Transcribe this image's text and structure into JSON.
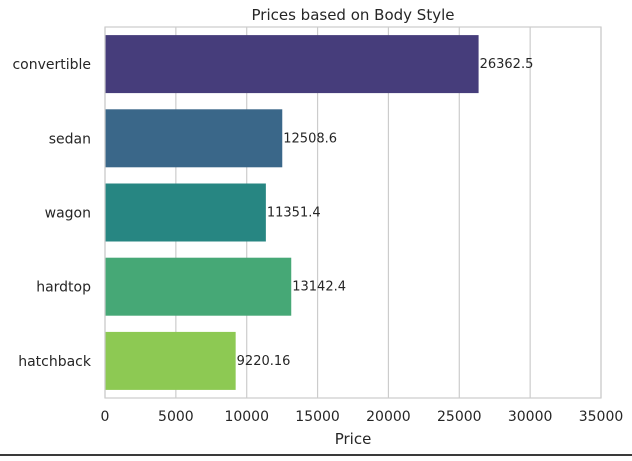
{
  "chart_data": {
    "type": "bar",
    "orientation": "horizontal",
    "title": "Prices based on Body Style",
    "xlabel": "Price",
    "ylabel": "",
    "categories": [
      "convertible",
      "sedan",
      "wagon",
      "hardtop",
      "hatchback"
    ],
    "values": [
      26362.5,
      12508.6,
      11351.4,
      13142.4,
      9220.16
    ],
    "data_labels": [
      "26362.5",
      "12508.6",
      "11351.4",
      "13142.4",
      "9220.16"
    ],
    "xlim": [
      0,
      35000
    ],
    "xticks": [
      0,
      5000,
      10000,
      15000,
      20000,
      25000,
      30000,
      35000
    ],
    "xtick_labels": [
      "0",
      "5000",
      "10000",
      "15000",
      "20000",
      "25000",
      "30000",
      "35000"
    ],
    "grid": "vertical",
    "legend": "none",
    "colors": [
      "#463d7b",
      "#3a6789",
      "#278682",
      "#46a876",
      "#8dc953"
    ]
  }
}
